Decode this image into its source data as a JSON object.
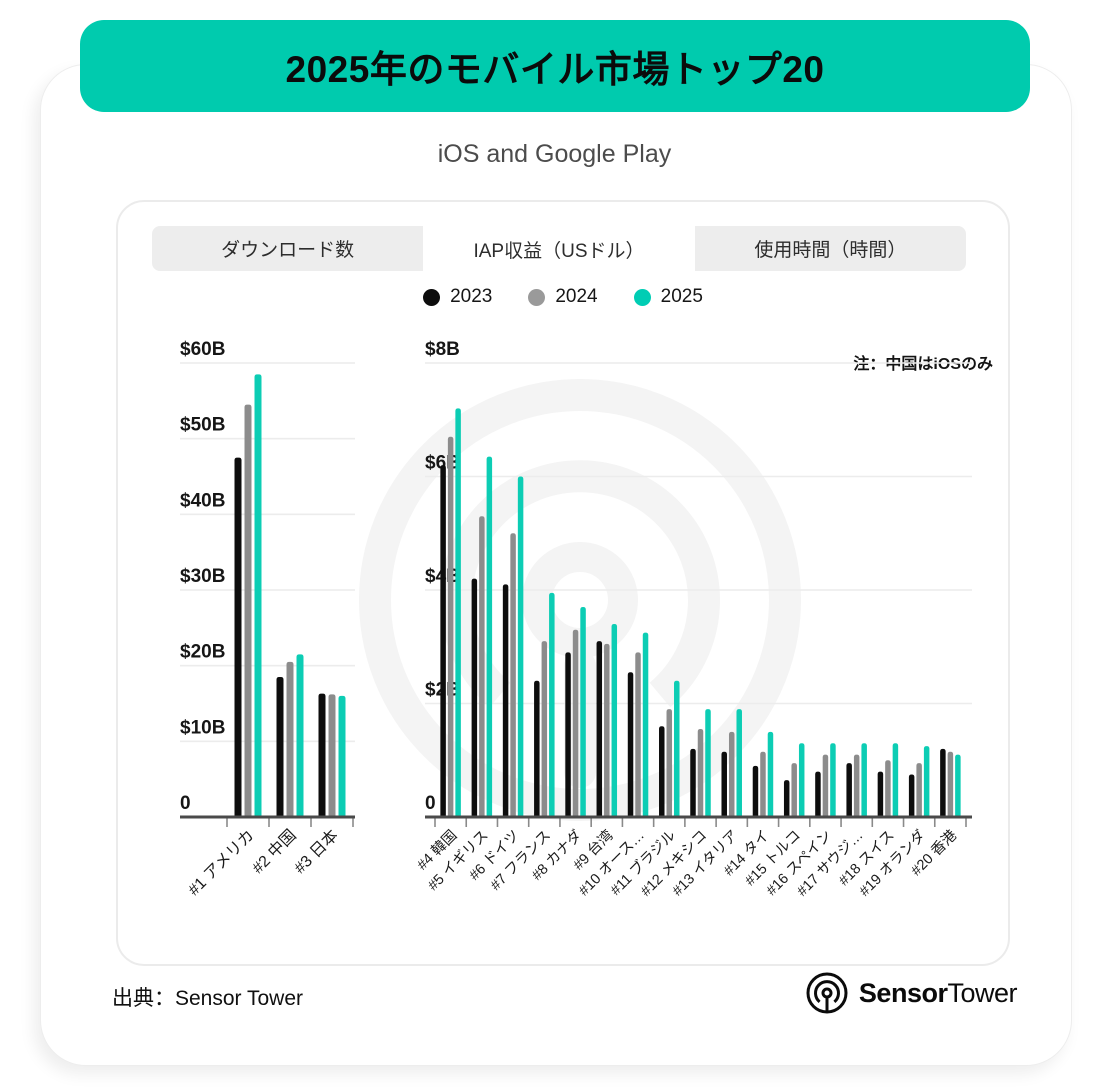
{
  "title": "2025年のモバイル市場トップ20",
  "subtitle": "iOS and Google Play",
  "tabs": [
    {
      "label": "ダウンロード数",
      "active": false
    },
    {
      "label": "IAP収益（USドル）",
      "active": true
    },
    {
      "label": "使用時間（時間）",
      "active": false
    }
  ],
  "legend": [
    {
      "label": "2023",
      "color": "#0d0d0d"
    },
    {
      "label": "2024",
      "color": "#9a9a9a"
    },
    {
      "label": "2025",
      "color": "#00cdb4"
    }
  ],
  "note": "注：中国はiOSのみ",
  "footer": {
    "source": "出典：Sensor Tower",
    "logo_bold": "Sensor",
    "logo_regular": "Tower"
  },
  "colors": {
    "banner": "#00cbae",
    "gridline": "#ececec",
    "axis": "#4a4a4a"
  },
  "chart_data": [
    {
      "type": "bar",
      "panel": "left",
      "categories": [
        "#1 アメリカ",
        "#2 中国",
        "#3 日本"
      ],
      "series": [
        {
          "name": "2023",
          "color": "#0d0d0d",
          "values": [
            47.5,
            18.5,
            16.3
          ]
        },
        {
          "name": "2024",
          "color": "#8c8c8c",
          "values": [
            54.5,
            20.5,
            16.2
          ]
        },
        {
          "name": "2025",
          "color": "#0ccdb4",
          "values": [
            58.5,
            21.5,
            16.0
          ]
        }
      ],
      "ylim": [
        0,
        60
      ],
      "ytick_values": [
        60,
        50,
        40,
        30,
        20,
        10,
        0
      ],
      "ytick_labels": [
        "$60B",
        "$50B",
        "$40B",
        "$30B",
        "$20B",
        "$10B",
        "0"
      ],
      "grid": true,
      "legend_position": "top-center"
    },
    {
      "type": "bar",
      "panel": "right",
      "categories": [
        "#4 韓国",
        "#5 イギリス",
        "#6 ドイツ",
        "#7 フランス",
        "#8 カナダ",
        "#9 台湾",
        "#10 オース…",
        "#11 ブラジル",
        "#12 メキシコ",
        "#13 イタリア",
        "#14 タイ",
        "#15 トルコ",
        "#16 スペイン",
        "#17 サウジ…",
        "#18 スイス",
        "#19 オランダ",
        "#20 香港"
      ],
      "series": [
        {
          "name": "2023",
          "color": "#0d0d0d",
          "values": [
            6.2,
            4.2,
            4.1,
            2.4,
            2.9,
            3.1,
            2.55,
            1.6,
            1.2,
            1.15,
            0.9,
            0.65,
            0.8,
            0.95,
            0.8,
            0.75,
            1.2
          ]
        },
        {
          "name": "2024",
          "color": "#8c8c8c",
          "values": [
            6.7,
            5.3,
            5.0,
            3.1,
            3.3,
            3.05,
            2.9,
            1.9,
            1.55,
            1.5,
            1.15,
            0.95,
            1.1,
            1.1,
            1.0,
            0.95,
            1.15
          ]
        },
        {
          "name": "2025",
          "color": "#0ccdb4",
          "values": [
            7.2,
            6.35,
            6.0,
            3.95,
            3.7,
            3.4,
            3.25,
            2.4,
            1.9,
            1.9,
            1.5,
            1.3,
            1.3,
            1.3,
            1.3,
            1.25,
            1.1
          ]
        }
      ],
      "ylim": [
        0,
        8
      ],
      "ytick_values": [
        8,
        6,
        4,
        2,
        0
      ],
      "ytick_labels": [
        "$8B",
        "$6B",
        "$4B",
        "$2B",
        "0"
      ],
      "grid": true,
      "note": "注：中国はiOSのみ"
    }
  ]
}
